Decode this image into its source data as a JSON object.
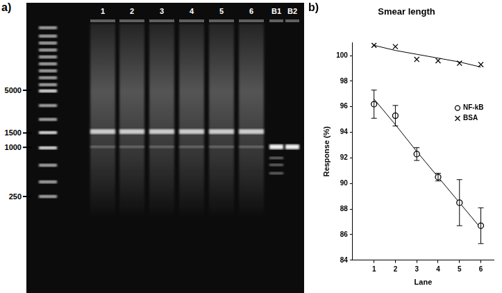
{
  "gel": {
    "panel_label": "a)",
    "lanes": [
      "1",
      "2",
      "3",
      "4",
      "5",
      "6",
      "B1",
      "B2"
    ],
    "size_markers": [
      5000,
      1500,
      1000,
      250
    ]
  },
  "chart_data": {
    "panel_label": "b)",
    "type": "scatter",
    "title": "Smear length",
    "x_label": "Lane",
    "y_label": "Response (%)",
    "x": [
      1,
      2,
      3,
      4,
      5,
      6
    ],
    "series": [
      {
        "name": "NF-kB",
        "color": "#000000",
        "marker": "circle",
        "values": [
          96.2,
          95.3,
          92.3,
          90.5,
          88.5,
          86.7
        ],
        "errors": [
          1.1,
          0.8,
          0.5,
          0.3,
          1.8,
          1.4
        ],
        "fit": [
          96.6,
          94.6,
          92.5,
          90.5,
          88.5,
          86.5
        ]
      },
      {
        "name": "BSA",
        "color": "#000000",
        "marker": "x",
        "values": [
          100.8,
          100.7,
          99.7,
          99.6,
          99.4,
          99.3
        ],
        "fit": [
          100.8,
          100.4,
          100.1,
          99.8,
          99.5,
          99.1
        ]
      }
    ],
    "xlim": [
      0,
      6.6
    ],
    "xticks": [
      1,
      2,
      3,
      4,
      5,
      6
    ],
    "ylim": [
      84,
      101
    ],
    "yticks": [
      84,
      86,
      88,
      90,
      92,
      94,
      96,
      98,
      100
    ],
    "grid": false,
    "legend": "right"
  }
}
